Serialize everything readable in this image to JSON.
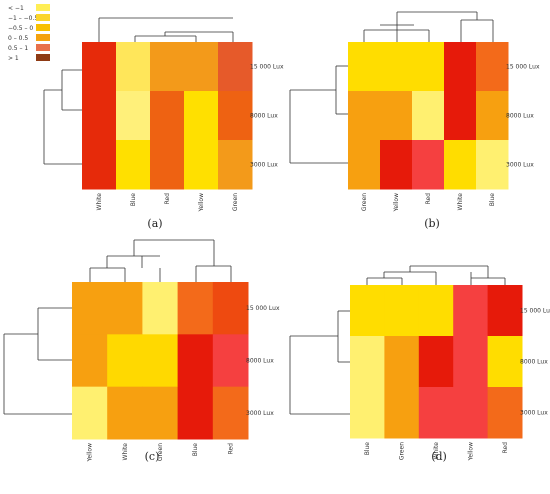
{
  "colors": {
    "lt_m1": "#ffee55",
    "m1_m05": "#fbd52a",
    "m05_0": "#f8c000",
    "z_05": "#f4a20f",
    "h05_1": "#e8704a",
    "gt_1": "#8e3a14"
  },
  "legend": {
    "labels": [
      "< −1",
      "−1 – −0.5",
      "−0.5 – 0",
      "0 – 0.5",
      "0.5 – 1",
      "> 1"
    ],
    "colors": [
      "#ffee55",
      "#fbd52a",
      "#f8c000",
      "#f4a20f",
      "#e8704a",
      "#8e3a14"
    ]
  },
  "chart_data": [
    {
      "type": "heatmap",
      "caption": "(a)",
      "columns": [
        "White",
        "Blue",
        "Red",
        "Yellow",
        "Green"
      ],
      "rows": [
        "15 000 Lux",
        "8000 Lux",
        "3000 Lux"
      ],
      "values": [
        [
          "#e62a0a",
          "#ffe65a",
          "#f39a1a",
          "#f39a1a",
          "#e65a2a"
        ],
        [
          "#e62a0a",
          "#fff07a",
          "#ee6212",
          "#ffe000",
          "#ee6212"
        ],
        [
          "#e62a0a",
          "#ffe000",
          "#ee6212",
          "#ffe000",
          "#f39a1a"
        ]
      ]
    },
    {
      "type": "heatmap",
      "caption": "(b)",
      "columns": [
        "Green",
        "Yellow",
        "Red",
        "White",
        "Blue"
      ],
      "rows": [
        "15 000 Lux",
        "8000 Lux",
        "3000 Lux"
      ],
      "values": [
        [
          "#ffdd00",
          "#ffdd00",
          "#ffdd00",
          "#e61a0a",
          "#f36a1a"
        ],
        [
          "#f7a010",
          "#f7a010",
          "#fff070",
          "#e61a0a",
          "#f7a010"
        ],
        [
          "#f7a010",
          "#e61a0a",
          "#f54040",
          "#ffdd00",
          "#fff070"
        ]
      ]
    },
    {
      "type": "heatmap",
      "caption": "(c)",
      "columns": [
        "Yellow",
        "White",
        "Green",
        "Blue",
        "Red"
      ],
      "rows": [
        "15 000 Lux",
        "8000 Lux",
        "3000 Lux"
      ],
      "values": [
        [
          "#f7a010",
          "#f7a010",
          "#fff070",
          "#f36a1a",
          "#ee4a10"
        ],
        [
          "#f7a010",
          "#ffd900",
          "#ffd900",
          "#e61a0a",
          "#f54040"
        ],
        [
          "#fff070",
          "#f7a010",
          "#f7a010",
          "#e61a0a",
          "#f36a1a"
        ]
      ]
    },
    {
      "type": "heatmap",
      "caption": "(d)",
      "columns": [
        "Blue",
        "Green",
        "White",
        "Yellow",
        "Red"
      ],
      "rows": [
        "15 000 Lux",
        "8000 Lux",
        "3000 Lux"
      ],
      "values": [
        [
          "#ffdd00",
          "#ffdd00",
          "#ffdd00",
          "#f54040",
          "#e61a0a"
        ],
        [
          "#fff070",
          "#f7a010",
          "#e61a0a",
          "#f54040",
          "#ffdd00"
        ],
        [
          "#fff070",
          "#f7a010",
          "#f54040",
          "#f54040",
          "#f36a1a"
        ]
      ]
    }
  ]
}
